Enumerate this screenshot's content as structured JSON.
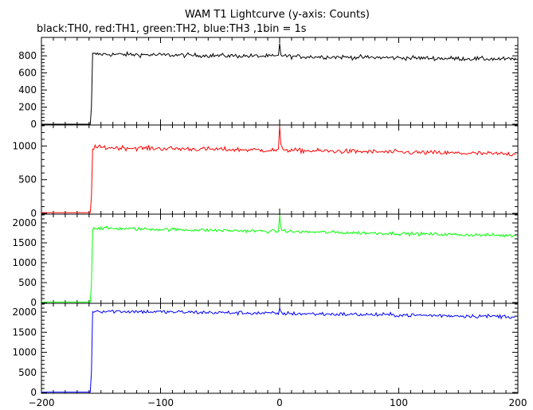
{
  "chart_data": {
    "type": "line",
    "title": "WAM T1 Lightcurve (y-axis: Counts)",
    "subtitle": "black:TH0, red:TH1, green:TH2, blue:TH3 ,1bin = 1s",
    "xlim": [
      -200,
      200
    ],
    "x_ticks": [
      -200,
      -100,
      0,
      100,
      200
    ],
    "x_tick_labels": [
      "−200",
      "−100",
      "0",
      "100",
      "200"
    ],
    "trigger_time": 0,
    "data_start_time": -158,
    "data_end_time": 198,
    "grid": false,
    "legend": "none",
    "panels": [
      {
        "series": "TH0",
        "color": "#000000",
        "ylim": [
          0,
          950
        ],
        "y_ticks": [
          0,
          200,
          400,
          600,
          800
        ],
        "baseline": 0,
        "level_start": 820,
        "level_end": 760,
        "noise": 18,
        "spike_peak": 945
      },
      {
        "series": "TH1",
        "color": "#ff0000",
        "ylim": [
          0,
          1300
        ],
        "y_ticks": [
          0,
          500,
          1000
        ],
        "baseline": 10,
        "level_start": 980,
        "level_end": 880,
        "noise": 25,
        "spike_peak": 1300
      },
      {
        "series": "TH2",
        "color": "#00ff00",
        "ylim": [
          0,
          2200
        ],
        "y_ticks": [
          0,
          500,
          1000,
          1500,
          2000
        ],
        "baseline": 10,
        "level_start": 1870,
        "level_end": 1680,
        "noise": 30,
        "spike_peak": 2200
      },
      {
        "series": "TH3",
        "color": "#0000ff",
        "ylim": [
          0,
          2200
        ],
        "y_ticks": [
          0,
          500,
          1000,
          1500,
          2000
        ],
        "baseline": 10,
        "level_start": 2030,
        "level_end": 1890,
        "noise": 35,
        "spike_peak": 2100
      }
    ]
  }
}
